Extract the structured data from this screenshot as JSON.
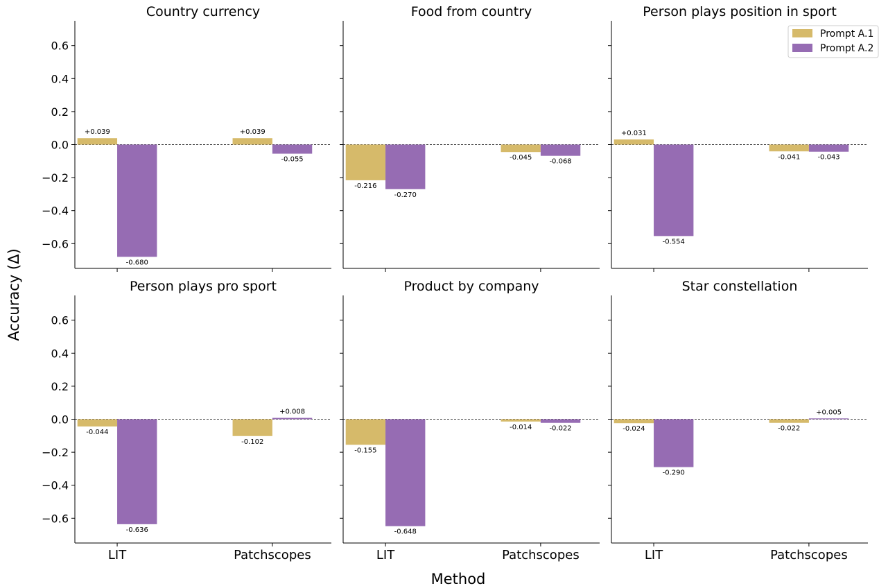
{
  "figure": {
    "xlabel": "Method",
    "ylabel": "Accuracy (Δ)"
  },
  "legend": {
    "location": "top-right of last top-row panel",
    "entries": [
      {
        "label": "Prompt A.1",
        "color": "#d6ba6a"
      },
      {
        "label": "Prompt A.2",
        "color": "#966cb3"
      }
    ]
  },
  "chart_data": [
    {
      "type": "bar",
      "title": "Country currency",
      "categories": [
        "LIT",
        "Patchscopes"
      ],
      "series": [
        {
          "name": "Prompt A.1",
          "values": [
            0.039,
            0.039
          ],
          "labels": [
            "+0.039",
            "+0.039"
          ]
        },
        {
          "name": "Prompt A.2",
          "values": [
            -0.68,
            -0.055
          ],
          "labels": [
            "-0.680",
            "-0.055"
          ]
        }
      ],
      "ylim": [
        -0.75,
        0.75
      ],
      "yticks": [
        "0.6",
        "0.4",
        "0.2",
        "0.0",
        "−0.2",
        "−0.4",
        "−0.6"
      ],
      "show_ytick_labels": true,
      "show_xtick_labels": false
    },
    {
      "type": "bar",
      "title": "Food from country",
      "categories": [
        "LIT",
        "Patchscopes"
      ],
      "series": [
        {
          "name": "Prompt A.1",
          "values": [
            -0.216,
            -0.045
          ],
          "labels": [
            "-0.216",
            "-0.045"
          ]
        },
        {
          "name": "Prompt A.2",
          "values": [
            -0.27,
            -0.068
          ],
          "labels": [
            "-0.270",
            "-0.068"
          ]
        }
      ],
      "ylim": [
        -0.75,
        0.75
      ],
      "yticks": [
        "0.6",
        "0.4",
        "0.2",
        "0.0",
        "−0.2",
        "−0.4",
        "−0.6"
      ],
      "show_ytick_labels": false,
      "show_xtick_labels": false
    },
    {
      "type": "bar",
      "title": "Person plays position in sport",
      "categories": [
        "LIT",
        "Patchscopes"
      ],
      "series": [
        {
          "name": "Prompt A.1",
          "values": [
            0.031,
            -0.041
          ],
          "labels": [
            "+0.031",
            "-0.041"
          ]
        },
        {
          "name": "Prompt A.2",
          "values": [
            -0.554,
            -0.043
          ],
          "labels": [
            "-0.554",
            "-0.043"
          ]
        }
      ],
      "ylim": [
        -0.75,
        0.75
      ],
      "yticks": [
        "0.6",
        "0.4",
        "0.2",
        "0.0",
        "−0.2",
        "−0.4",
        "−0.6"
      ],
      "show_ytick_labels": false,
      "show_xtick_labels": false,
      "legend": true
    },
    {
      "type": "bar",
      "title": "Person plays pro sport",
      "categories": [
        "LIT",
        "Patchscopes"
      ],
      "series": [
        {
          "name": "Prompt A.1",
          "values": [
            -0.044,
            -0.102
          ],
          "labels": [
            "-0.044",
            "-0.102"
          ]
        },
        {
          "name": "Prompt A.2",
          "values": [
            -0.636,
            0.008
          ],
          "labels": [
            "-0.636",
            "+0.008"
          ]
        }
      ],
      "ylim": [
        -0.75,
        0.75
      ],
      "yticks": [
        "0.6",
        "0.4",
        "0.2",
        "0.0",
        "−0.2",
        "−0.4",
        "−0.6"
      ],
      "show_ytick_labels": true,
      "show_xtick_labels": true
    },
    {
      "type": "bar",
      "title": "Product by company",
      "categories": [
        "LIT",
        "Patchscopes"
      ],
      "series": [
        {
          "name": "Prompt A.1",
          "values": [
            -0.155,
            -0.014
          ],
          "labels": [
            "-0.155",
            "-0.014"
          ]
        },
        {
          "name": "Prompt A.2",
          "values": [
            -0.648,
            -0.022
          ],
          "labels": [
            "-0.648",
            "-0.022"
          ]
        }
      ],
      "ylim": [
        -0.75,
        0.75
      ],
      "yticks": [
        "0.6",
        "0.4",
        "0.2",
        "0.0",
        "−0.2",
        "−0.4",
        "−0.6"
      ],
      "show_ytick_labels": false,
      "show_xtick_labels": true
    },
    {
      "type": "bar",
      "title": "Star constellation",
      "categories": [
        "LIT",
        "Patchscopes"
      ],
      "series": [
        {
          "name": "Prompt A.1",
          "values": [
            -0.024,
            -0.022
          ],
          "labels": [
            "-0.024",
            "-0.022"
          ]
        },
        {
          "name": "Prompt A.2",
          "values": [
            -0.29,
            0.005
          ],
          "labels": [
            "-0.290",
            "+0.005"
          ]
        }
      ],
      "ylim": [
        -0.75,
        0.75
      ],
      "yticks": [
        "0.6",
        "0.4",
        "0.2",
        "0.0",
        "−0.2",
        "−0.4",
        "−0.6"
      ],
      "show_ytick_labels": false,
      "show_xtick_labels": true
    }
  ]
}
